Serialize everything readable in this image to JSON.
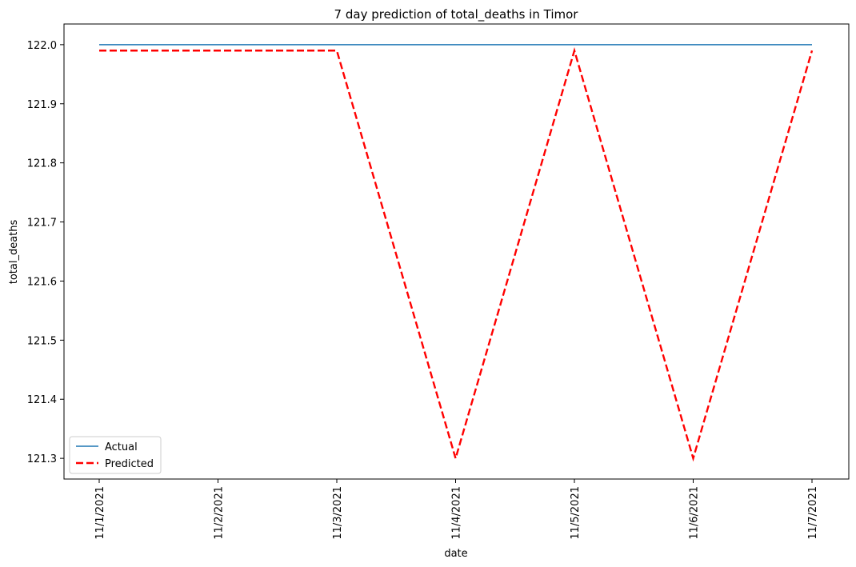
{
  "chart_data": {
    "type": "line",
    "title": "7 day prediction of total_deaths in Timor",
    "xlabel": "date",
    "ylabel": "total_deaths",
    "categories": [
      "11/1/2021",
      "11/2/2021",
      "11/3/2021",
      "11/4/2021",
      "11/5/2021",
      "11/6/2021",
      "11/7/2021"
    ],
    "yticks": [
      "121.3",
      "121.4",
      "121.5",
      "121.6",
      "121.7",
      "121.8",
      "121.9",
      "122.0"
    ],
    "ylim": [
      121.265,
      122.035
    ],
    "grid": false,
    "legend_position": "lower-left",
    "series": [
      {
        "name": "Actual",
        "values": [
          122.0,
          122.0,
          122.0,
          122.0,
          122.0,
          122.0,
          122.0
        ],
        "color": "#1f77b4",
        "style": "solid"
      },
      {
        "name": "Predicted",
        "values": [
          121.99,
          121.99,
          121.99,
          121.3,
          121.99,
          121.3,
          121.99
        ],
        "color": "#ff0000",
        "style": "dashed"
      }
    ]
  }
}
